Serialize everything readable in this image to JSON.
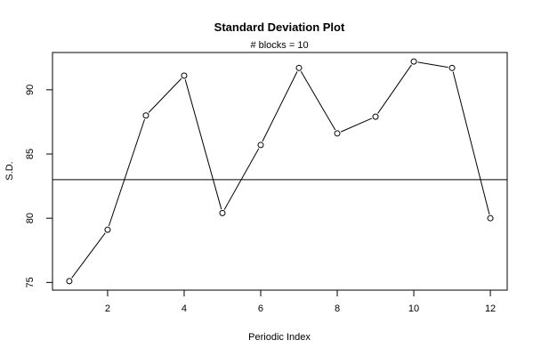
{
  "chart_data": {
    "type": "line",
    "title": "Standard Deviation Plot",
    "subtitle": "# blocks =  10",
    "xlabel": "Periodic Index",
    "ylabel": "S.D.",
    "x": [
      1,
      2,
      3,
      4,
      5,
      6,
      7,
      8,
      9,
      10,
      11,
      12
    ],
    "values": [
      75.1,
      79.1,
      88.0,
      91.1,
      80.4,
      85.7,
      91.7,
      86.6,
      87.9,
      92.2,
      91.7,
      80.0
    ],
    "reference_line": 83.0,
    "xlim": [
      0.56,
      12.44
    ],
    "ylim": [
      74.4,
      92.9
    ],
    "xticks": [
      2,
      4,
      6,
      8,
      10,
      12
    ],
    "yticks": [
      75,
      80,
      85,
      90
    ],
    "marker": "open-circle",
    "grid": false,
    "line_color": "#000000"
  }
}
